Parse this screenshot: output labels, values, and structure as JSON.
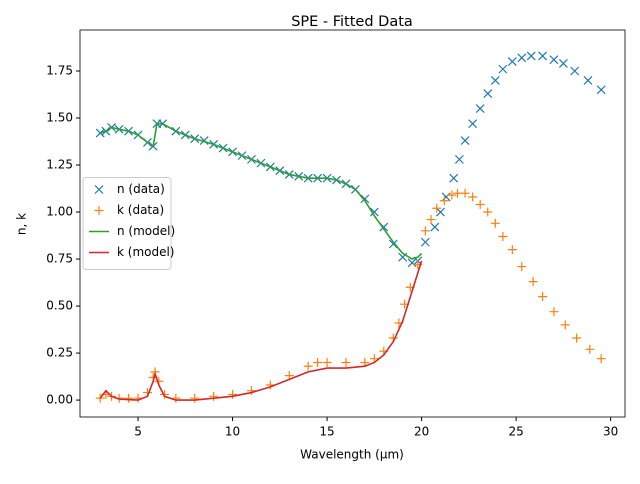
{
  "chart_data": {
    "type": "line",
    "title": "SPE - Fitted Data",
    "x_label": "Wavelength (μm)",
    "y_label": "n, k",
    "xlim": [
      1.93,
      30.76
    ],
    "ylim": [
      -0.09,
      1.968
    ],
    "xticks": [
      5,
      10,
      15,
      20,
      25,
      30
    ],
    "yticks": [
      {
        "value": 0,
        "label": "0.00"
      },
      {
        "value": 0.25,
        "label": "0.25"
      },
      {
        "value": 0.5,
        "label": "0.50"
      },
      {
        "value": 0.75,
        "label": "0.75"
      },
      {
        "value": 1.0,
        "label": "1.00"
      },
      {
        "value": 1.25,
        "label": "1.25"
      },
      {
        "value": 1.5,
        "label": "1.50"
      },
      {
        "value": 1.75,
        "label": "1.75"
      }
    ],
    "legend": "center left",
    "series": [
      {
        "name": "n (data)",
        "color": "#1f77b4",
        "marker": "x",
        "x": [
          3.0,
          3.3,
          3.6,
          4.0,
          4.5,
          5.0,
          5.5,
          5.8,
          6.0,
          6.3,
          7,
          7.5,
          8,
          8.5,
          9,
          9.5,
          10,
          10.5,
          11,
          11.5,
          12,
          12.5,
          13,
          13.5,
          14,
          14.5,
          15,
          15.5,
          16,
          16.5,
          17,
          17.5,
          18,
          18.5,
          19,
          19.5,
          19.8,
          20.2,
          20.7,
          21,
          21.3,
          21.7,
          22,
          22.3,
          22.7,
          23.1,
          23.5,
          23.9,
          24.3,
          24.8,
          25.3,
          25.8,
          26.4,
          27,
          27.5,
          28.1,
          28.8,
          29.5
        ],
        "values": [
          1.42,
          1.43,
          1.45,
          1.44,
          1.43,
          1.41,
          1.37,
          1.35,
          1.47,
          1.47,
          1.43,
          1.41,
          1.39,
          1.38,
          1.36,
          1.34,
          1.32,
          1.3,
          1.28,
          1.26,
          1.24,
          1.22,
          1.2,
          1.19,
          1.18,
          1.18,
          1.18,
          1.17,
          1.15,
          1.12,
          1.07,
          1.0,
          0.92,
          0.83,
          0.76,
          0.73,
          0.74,
          0.84,
          0.92,
          1.0,
          1.08,
          1.18,
          1.28,
          1.38,
          1.47,
          1.55,
          1.63,
          1.7,
          1.76,
          1.8,
          1.82,
          1.83,
          1.83,
          1.81,
          1.79,
          1.75,
          1.7,
          1.65
        ]
      },
      {
        "name": "k (data)",
        "color": "#ff7f0e",
        "marker": "+",
        "x": [
          3.0,
          3.3,
          3.6,
          4.0,
          4.5,
          5.0,
          5.5,
          5.8,
          5.9,
          6.1,
          6.4,
          7,
          8,
          9,
          10,
          11,
          12,
          13,
          14,
          14.5,
          15,
          16,
          17,
          17.5,
          18,
          18.5,
          18.8,
          19.1,
          19.4,
          19.8,
          20.2,
          20.5,
          20.8,
          21.2,
          21.6,
          21.9,
          22.3,
          22.7,
          23.1,
          23.5,
          23.9,
          24.3,
          24.8,
          25.3,
          25.9,
          26.4,
          27,
          27.6,
          28.2,
          28.9,
          29.5
        ],
        "values": [
          0.01,
          0.03,
          0.02,
          0.01,
          0.01,
          0.01,
          0.04,
          0.12,
          0.15,
          0.1,
          0.03,
          0.01,
          0.01,
          0.02,
          0.03,
          0.05,
          0.08,
          0.13,
          0.18,
          0.2,
          0.2,
          0.2,
          0.2,
          0.22,
          0.26,
          0.33,
          0.41,
          0.51,
          0.6,
          0.72,
          0.9,
          0.96,
          1.02,
          1.06,
          1.09,
          1.1,
          1.1,
          1.08,
          1.04,
          1.0,
          0.94,
          0.87,
          0.8,
          0.71,
          0.63,
          0.55,
          0.47,
          0.4,
          0.33,
          0.27,
          0.22
        ]
      },
      {
        "name": "n (model)",
        "color": "#2ca02c",
        "marker": "line",
        "x": [
          3.0,
          3.3,
          3.6,
          4.0,
          4.5,
          5.0,
          5.5,
          5.8,
          6.0,
          6.3,
          7,
          8,
          9,
          10,
          11,
          12,
          13,
          14,
          15,
          15.5,
          16,
          16.5,
          17,
          17.5,
          18,
          18.5,
          19,
          19.5,
          19.8,
          20
        ],
        "values": [
          1.42,
          1.43,
          1.45,
          1.44,
          1.43,
          1.41,
          1.37,
          1.35,
          1.47,
          1.47,
          1.43,
          1.39,
          1.36,
          1.32,
          1.28,
          1.24,
          1.2,
          1.18,
          1.18,
          1.17,
          1.15,
          1.12,
          1.06,
          0.98,
          0.91,
          0.84,
          0.78,
          0.75,
          0.76,
          0.78
        ]
      },
      {
        "name": "k (model)",
        "color": "#d62728",
        "marker": "line",
        "x": [
          3.0,
          3.3,
          3.6,
          4.0,
          5.0,
          5.5,
          5.8,
          5.9,
          6.1,
          6.4,
          7,
          8,
          9,
          10,
          11,
          12,
          13,
          14,
          15,
          16,
          17,
          17.5,
          18,
          18.5,
          19,
          19.5,
          20
        ],
        "values": [
          0.01,
          0.05,
          0.02,
          0.005,
          0.0,
          0.02,
          0.1,
          0.14,
          0.08,
          0.02,
          0.0,
          0.0,
          0.01,
          0.02,
          0.04,
          0.07,
          0.11,
          0.15,
          0.17,
          0.17,
          0.18,
          0.2,
          0.24,
          0.31,
          0.42,
          0.58,
          0.74
        ]
      }
    ]
  }
}
